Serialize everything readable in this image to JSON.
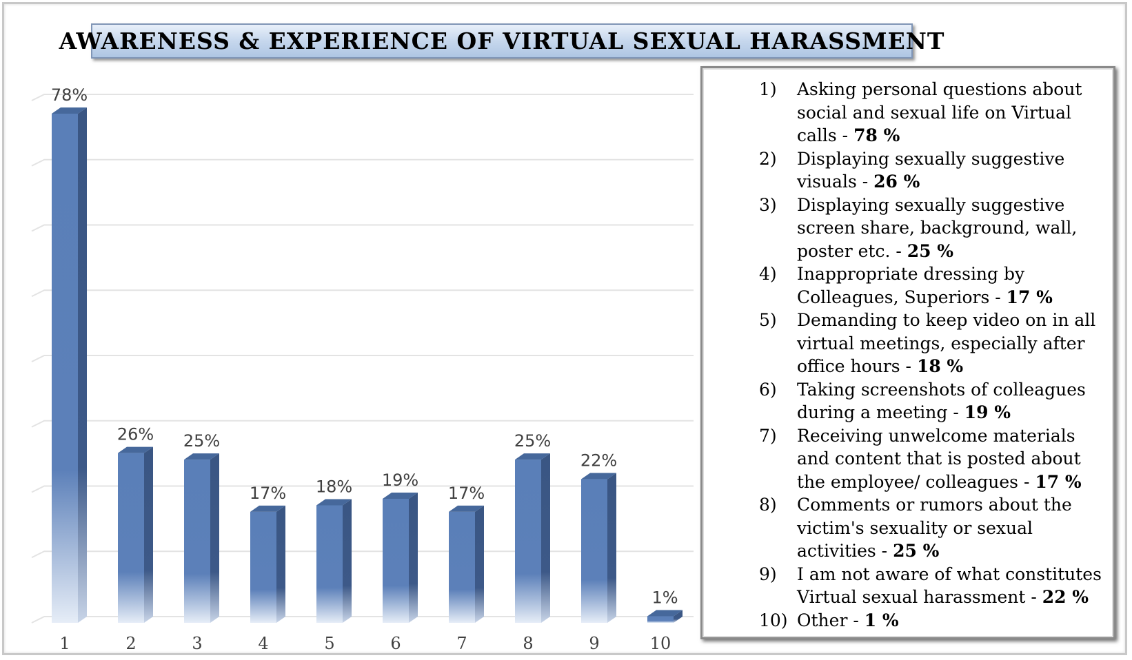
{
  "chart_data": {
    "type": "bar",
    "title": "AWARENESS & EXPERIENCE OF VIRTUAL SEXUAL HARASSMENT",
    "categories": [
      "1",
      "2",
      "3",
      "4",
      "5",
      "6",
      "7",
      "8",
      "9",
      "10"
    ],
    "values": [
      78,
      26,
      25,
      17,
      18,
      19,
      17,
      25,
      22,
      1
    ],
    "data_labels": [
      "78%",
      "26%",
      "25%",
      "17%",
      "18%",
      "19%",
      "17%",
      "25%",
      "22%",
      "1%"
    ],
    "ylim": [
      0,
      80
    ],
    "grid": true,
    "legend_position": "right",
    "colors": {
      "bar_front": "#5a7fb8",
      "bar_side": "#3a5683",
      "bar_top": "#46689b",
      "grid": "#e3e3e3"
    }
  },
  "legend": [
    {
      "num": "1)",
      "text": "Asking personal questions about social and sexual life on Virtual calls - ",
      "pct": "78 %"
    },
    {
      "num": "2)",
      "text": " Displaying sexually suggestive visuals - ",
      "pct": "26 %"
    },
    {
      "num": "3)",
      "text": " Displaying sexually suggestive screen share, background, wall, poster etc. - ",
      "pct": "25 %"
    },
    {
      "num": "4)",
      "text": "Inappropriate dressing by Colleagues, Superiors - ",
      "pct": "17 %"
    },
    {
      "num": "5)",
      "text": "Demanding to keep video on in all virtual meetings, especially after office hours - ",
      "pct": "18 %"
    },
    {
      "num": "6)",
      "text": "Taking screenshots of colleagues during a meeting - ",
      "pct": "19 %"
    },
    {
      "num": "7)",
      "text": "Receiving unwelcome materials and content that is posted about the employee/ colleagues - ",
      "pct": "17 %"
    },
    {
      "num": "8)",
      "text": "Comments or rumors about the victim's sexuality or sexual activities - ",
      "pct": "25 %"
    },
    {
      "num": "9)",
      "text": "I am not aware of what constitutes Virtual sexual harassment - ",
      "pct": "22 %"
    },
    {
      "num": "10)",
      "text": " Other - ",
      "pct": "1 %"
    }
  ]
}
